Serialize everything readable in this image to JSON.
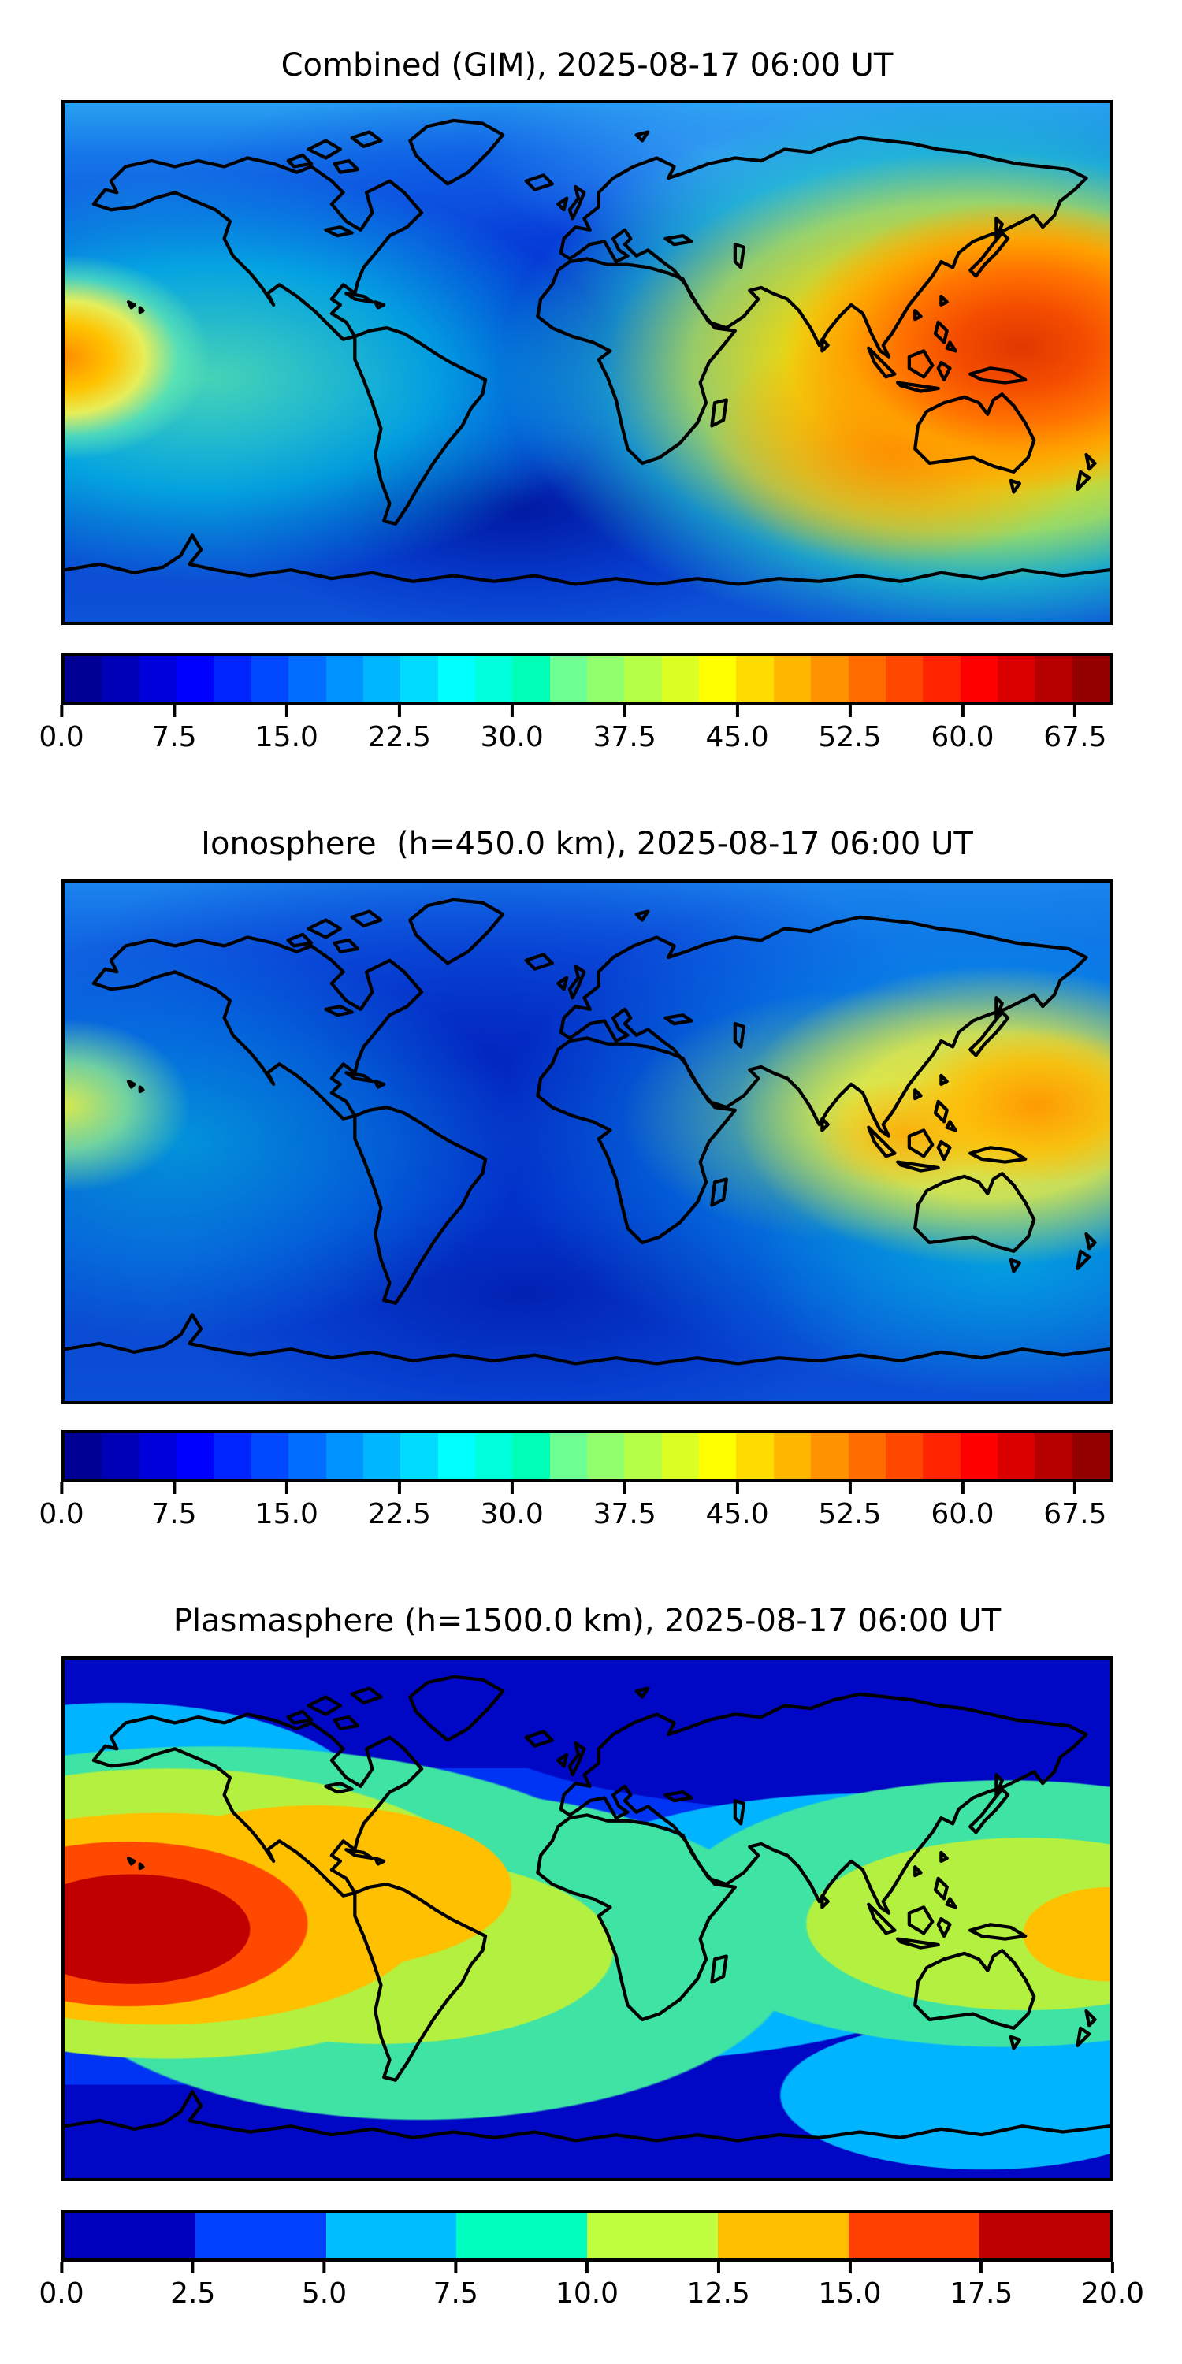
{
  "figure": {
    "timestamp_label": "2025-08-17 06:00 UT",
    "panel_count": 3
  },
  "panels": [
    {
      "id": "combined",
      "title": "Combined (GIM), 2025-08-17 06:00 UT",
      "colorbar": {
        "vmin": 0.0,
        "vmax": 70.0,
        "level_step": 2.5,
        "n_segments": 28,
        "palette": "jet28",
        "tick_labels": [
          "0.0",
          "7.5",
          "15.0",
          "22.5",
          "30.0",
          "37.5",
          "45.0",
          "52.5",
          "60.0",
          "67.5"
        ]
      }
    },
    {
      "id": "ionosphere",
      "title": "Ionosphere  (h=450.0 km), 2025-08-17 06:00 UT",
      "colorbar": {
        "vmin": 0.0,
        "vmax": 70.0,
        "level_step": 2.5,
        "n_segments": 28,
        "palette": "jet28",
        "tick_labels": [
          "0.0",
          "7.5",
          "15.0",
          "22.5",
          "30.0",
          "37.5",
          "45.0",
          "52.5",
          "60.0",
          "67.5"
        ]
      }
    },
    {
      "id": "plasmasphere",
      "title": "Plasmasphere (h=1500.0 km), 2025-08-17 06:00 UT",
      "colorbar": {
        "vmin": 0.0,
        "vmax": 20.0,
        "level_step": 2.5,
        "n_segments": 8,
        "palette": "jet8",
        "tick_labels": [
          "0.0",
          "2.5",
          "5.0",
          "7.5",
          "10.0",
          "12.5",
          "15.0",
          "17.5",
          "20.0"
        ]
      }
    }
  ],
  "colors": {
    "jet28": [
      "#000092",
      "#0000b6",
      "#0000db",
      "#0000ff",
      "#0025ff",
      "#0049ff",
      "#006dff",
      "#0092ff",
      "#00b6ff",
      "#00dbff",
      "#00ffff",
      "#00ffdb",
      "#00ffb6",
      "#6dff92",
      "#92ff6d",
      "#b6ff49",
      "#dbff25",
      "#ffff00",
      "#ffdb00",
      "#ffb600",
      "#ff9200",
      "#ff6d00",
      "#ff4900",
      "#ff2500",
      "#ff0000",
      "#db0000",
      "#b60000",
      "#920000"
    ],
    "jet8": [
      "#0000bf",
      "#0040ff",
      "#00bfff",
      "#00ffbf",
      "#bfff40",
      "#ffbf00",
      "#ff4000",
      "#bf0000"
    ]
  },
  "chart_data": [
    {
      "type": "heatmap",
      "title": "Combined (GIM), 2025-08-17 06:00 UT",
      "colormap": "jet",
      "projection": "equirectangular world map with coastlines",
      "lon_range": [
        -180,
        180
      ],
      "lat_range": [
        -90,
        90
      ],
      "value_range": [
        0,
        70
      ],
      "contour_level_step": 2.5,
      "colorbar_ticks": [
        0.0,
        7.5,
        15.0,
        22.5,
        30.0,
        37.5,
        45.0,
        52.5,
        60.0,
        67.5
      ],
      "legend_position": "bottom horizontal colorbar",
      "grid": false,
      "features_est": [
        {
          "label": "primary maximum (W Pacific / SE Asia)",
          "value_est": 66,
          "lon_est": 150,
          "lat_est": 8
        },
        {
          "label": "secondary maximum wrapping dateline (west edge)",
          "value_est": 50,
          "lon_est": -178,
          "lat_est": 0
        },
        {
          "label": "minimum (South Atlantic)",
          "value_est": 3,
          "lon_est": -20,
          "lat_est": -40
        }
      ]
    },
    {
      "type": "heatmap",
      "title": "Ionosphere  (h=450.0 km), 2025-08-17 06:00 UT",
      "colormap": "jet",
      "projection": "equirectangular world map with coastlines",
      "lon_range": [
        -180,
        180
      ],
      "lat_range": [
        -90,
        90
      ],
      "value_range": [
        0,
        70
      ],
      "contour_level_step": 2.5,
      "colorbar_ticks": [
        0.0,
        7.5,
        15.0,
        22.5,
        30.0,
        37.5,
        45.0,
        52.5,
        60.0,
        67.5
      ],
      "legend_position": "bottom horizontal colorbar",
      "grid": false,
      "features_est": [
        {
          "label": "primary maximum (Philippine Sea)",
          "value_est": 55,
          "lon_est": 155,
          "lat_est": 5
        },
        {
          "label": "secondary maximum at west edge",
          "value_est": 40,
          "lon_est": -179,
          "lat_est": 0
        },
        {
          "label": "minimum (S America / S Atlantic)",
          "value_est": 2,
          "lon_est": -40,
          "lat_est": -35
        }
      ]
    },
    {
      "type": "heatmap",
      "title": "Plasmasphere (h=1500.0 km), 2025-08-17 06:00 UT",
      "colormap": "jet",
      "projection": "equirectangular world map with coastlines",
      "lon_range": [
        -180,
        180
      ],
      "lat_range": [
        -90,
        90
      ],
      "value_range": [
        0,
        20
      ],
      "contour_level_step": 2.5,
      "colorbar_ticks": [
        0.0,
        2.5,
        5.0,
        7.5,
        10.0,
        12.5,
        15.0,
        17.5,
        20.0
      ],
      "legend_position": "bottom horizontal colorbar",
      "grid": false,
      "features_est": [
        {
          "label": "primary maximum (SE Pacific)",
          "value_est": 20,
          "lon_est": -157,
          "lat_est": -14
        },
        {
          "label": "secondary maximum at east edge",
          "value_est": 16,
          "lon_est": 179,
          "lat_est": -8
        },
        {
          "label": "minimum (high latitudes)",
          "value_est": 1,
          "lon_est": 100,
          "lat_est": 65
        }
      ]
    }
  ]
}
